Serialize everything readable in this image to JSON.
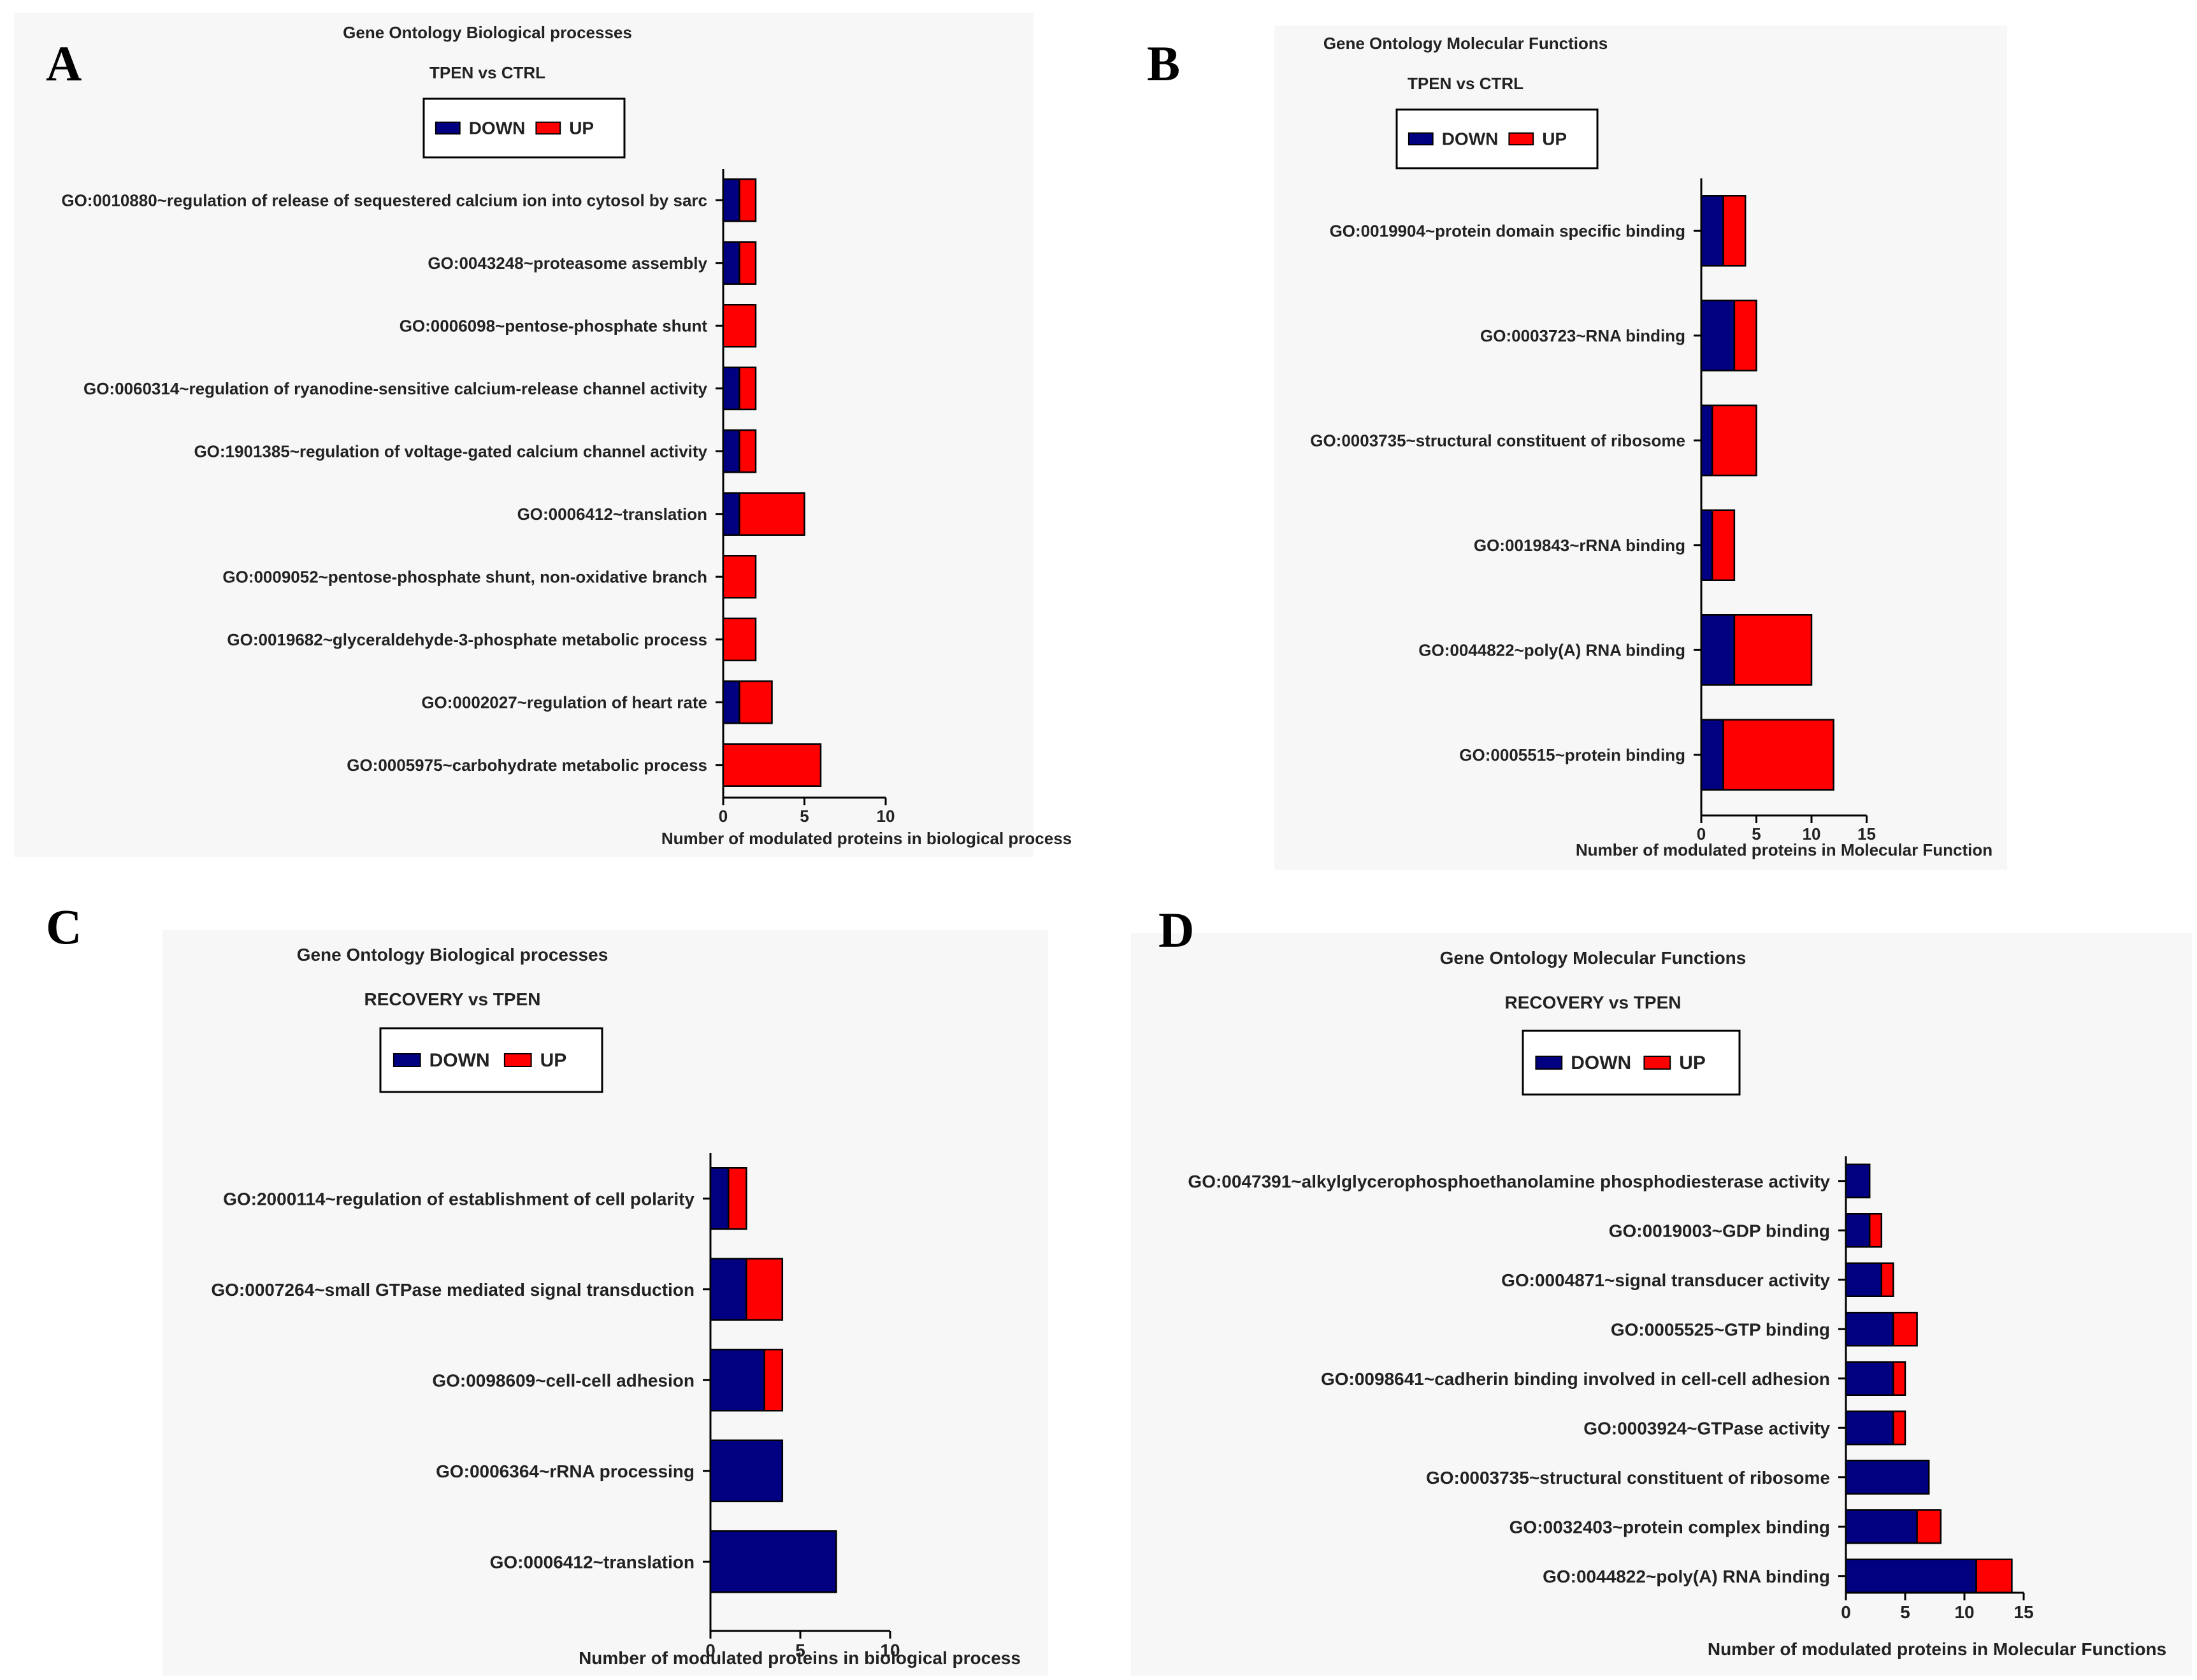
{
  "colors": {
    "down": "#000080",
    "up": "#ff0000",
    "border": "#000000"
  },
  "chart_data": [
    {
      "id": "A",
      "type": "bar",
      "orientation": "horizontal",
      "stacked": true,
      "panel_label": "A",
      "title": "Gene Ontology Biological processes",
      "subtitle": "TPEN vs CTRL",
      "xlabel": "Number of modulated proteins in biological process",
      "xlim": [
        0,
        10
      ],
      "xticks": [
        0,
        5,
        10
      ],
      "legend": {
        "placement": "top",
        "entries": [
          "DOWN",
          "UP"
        ]
      },
      "categories": [
        "GO:0010880~regulation of release of sequestered calcium ion into cytosol by sarc",
        "GO:0043248~proteasome assembly",
        "GO:0006098~pentose-phosphate shunt",
        "GO:0060314~regulation of ryanodine-sensitive calcium-release channel activity",
        "GO:1901385~regulation of voltage-gated calcium channel activity",
        "GO:0006412~translation",
        "GO:0009052~pentose-phosphate shunt, non-oxidative branch",
        "GO:0019682~glyceraldehyde-3-phosphate metabolic process",
        "GO:0002027~regulation of heart rate",
        "GO:0005975~carbohydrate metabolic process"
      ],
      "series": [
        {
          "name": "DOWN",
          "values": [
            1,
            1,
            0,
            1,
            1,
            1,
            0,
            0,
            1,
            0
          ]
        },
        {
          "name": "UP",
          "values": [
            1,
            1,
            2,
            1,
            1,
            4,
            2,
            2,
            2,
            6
          ]
        }
      ]
    },
    {
      "id": "B",
      "type": "bar",
      "orientation": "horizontal",
      "stacked": true,
      "panel_label": "B",
      "title": "Gene Ontology Molecular Functions",
      "subtitle": "TPEN vs CTRL",
      "xlabel": "Number of modulated proteins in Molecular Function",
      "xlim": [
        0,
        15
      ],
      "xticks": [
        0,
        5,
        10,
        15
      ],
      "legend": {
        "placement": "top",
        "entries": [
          "DOWN",
          "UP"
        ]
      },
      "categories": [
        "GO:0019904~protein domain specific binding",
        "GO:0003723~RNA binding",
        "GO:0003735~structural constituent of ribosome",
        "GO:0019843~rRNA binding",
        "GO:0044822~poly(A) RNA binding",
        "GO:0005515~protein binding"
      ],
      "series": [
        {
          "name": "DOWN",
          "values": [
            2,
            3,
            1,
            1,
            3,
            2
          ]
        },
        {
          "name": "UP",
          "values": [
            2,
            2,
            4,
            2,
            7,
            10
          ]
        }
      ]
    },
    {
      "id": "C",
      "type": "bar",
      "orientation": "horizontal",
      "stacked": true,
      "panel_label": "C",
      "title": "Gene Ontology Biological processes",
      "subtitle": "RECOVERY vs TPEN",
      "xlabel": "Number of modulated proteins in biological process",
      "xlim": [
        0,
        10
      ],
      "xticks": [
        0,
        5,
        10
      ],
      "legend": {
        "placement": "top",
        "entries": [
          "DOWN",
          "UP"
        ]
      },
      "categories": [
        "GO:2000114~regulation of establishment of cell polarity",
        "GO:0007264~small GTPase mediated signal transduction",
        "GO:0098609~cell-cell adhesion",
        "GO:0006364~rRNA processing",
        "GO:0006412~translation"
      ],
      "series": [
        {
          "name": "DOWN",
          "values": [
            1,
            2,
            3,
            4,
            7
          ]
        },
        {
          "name": "UP",
          "values": [
            1,
            2,
            1,
            0,
            0
          ]
        }
      ]
    },
    {
      "id": "D",
      "type": "bar",
      "orientation": "horizontal",
      "stacked": true,
      "panel_label": "D",
      "title": "Gene Ontology Molecular Functions",
      "subtitle": "RECOVERY vs TPEN",
      "xlabel": "Number of modulated proteins in Molecular Functions",
      "xlim": [
        0,
        15
      ],
      "xticks": [
        0,
        5,
        10,
        15
      ],
      "legend": {
        "placement": "top",
        "entries": [
          "DOWN",
          "UP"
        ]
      },
      "categories": [
        "GO:0047391~alkylglycerophosphoethanolamine phosphodiesterase activity",
        "GO:0019003~GDP binding",
        "GO:0004871~signal transducer activity",
        "GO:0005525~GTP binding",
        "GO:0098641~cadherin binding involved in cell-cell adhesion",
        "GO:0003924~GTPase activity",
        "GO:0003735~structural constituent of ribosome",
        "GO:0032403~protein complex binding",
        "GO:0044822~poly(A) RNA binding"
      ],
      "series": [
        {
          "name": "DOWN",
          "values": [
            2,
            2,
            3,
            4,
            4,
            4,
            7,
            6,
            11
          ]
        },
        {
          "name": "UP",
          "values": [
            0,
            1,
            1,
            2,
            1,
            1,
            0,
            2,
            3
          ]
        }
      ]
    }
  ]
}
